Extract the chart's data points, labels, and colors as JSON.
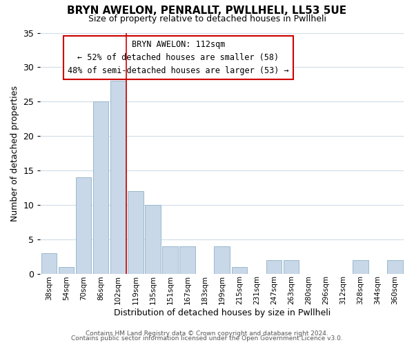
{
  "title1": "BRYN AWELON, PENRALLT, PWLLHELI, LL53 5UE",
  "title2": "Size of property relative to detached houses in Pwllheli",
  "xlabel": "Distribution of detached houses by size in Pwllheli",
  "ylabel": "Number of detached properties",
  "bin_labels": [
    "38sqm",
    "54sqm",
    "70sqm",
    "86sqm",
    "102sqm",
    "119sqm",
    "135sqm",
    "151sqm",
    "167sqm",
    "183sqm",
    "199sqm",
    "215sqm",
    "231sqm",
    "247sqm",
    "263sqm",
    "280sqm",
    "296sqm",
    "312sqm",
    "328sqm",
    "344sqm",
    "360sqm"
  ],
  "bar_values": [
    3,
    1,
    14,
    25,
    28,
    12,
    10,
    4,
    4,
    0,
    4,
    1,
    0,
    2,
    2,
    0,
    0,
    0,
    2,
    0,
    2
  ],
  "bar_color": "#c8d8e8",
  "bar_edge_color": "#9ab8cc",
  "vline_x_index": 4,
  "vline_color": "#cc0000",
  "annotation_title": "BRYN AWELON: 112sqm",
  "annotation_line1": "← 52% of detached houses are smaller (58)",
  "annotation_line2": "48% of semi-detached houses are larger (53) →",
  "annotation_box_color": "#ffffff",
  "annotation_box_edge": "#cc0000",
  "ylim": [
    0,
    35
  ],
  "yticks": [
    0,
    5,
    10,
    15,
    20,
    25,
    30,
    35
  ],
  "footer1": "Contains HM Land Registry data © Crown copyright and database right 2024.",
  "footer2": "Contains public sector information licensed under the Open Government Licence v3.0.",
  "background_color": "#ffffff",
  "grid_color": "#d0dce8"
}
